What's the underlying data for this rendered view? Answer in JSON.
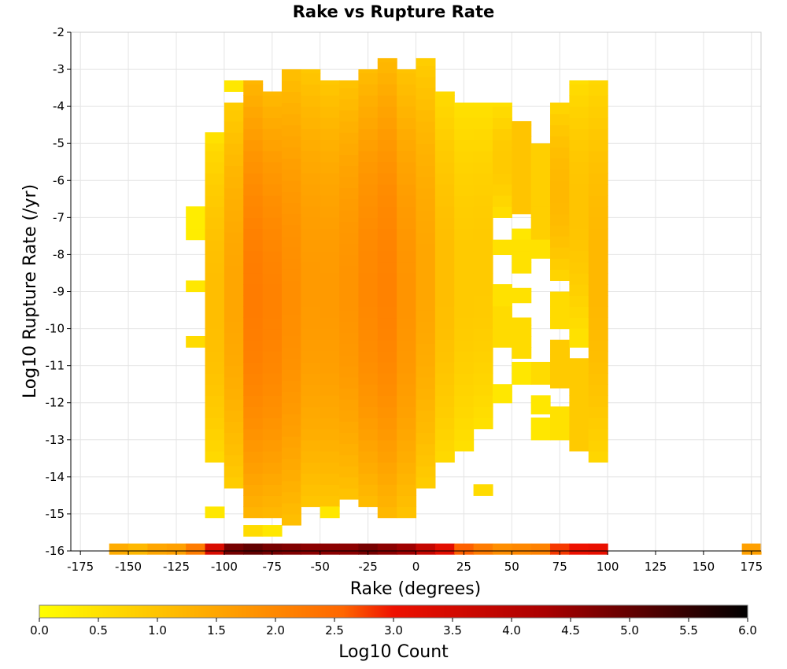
{
  "chart_data": {
    "type": "heatmap",
    "title": "Rake vs Rupture Rate",
    "xlabel": "Rake (degrees)",
    "ylabel": "Log10 Rupture Rate (/yr)",
    "xlim": [
      -180,
      180
    ],
    "ylim": [
      -16,
      -2
    ],
    "x_ticks": [
      -175,
      -150,
      -125,
      -100,
      -75,
      -50,
      -25,
      0,
      25,
      50,
      75,
      100,
      125,
      150,
      175
    ],
    "y_ticks": [
      -2,
      -3,
      -4,
      -5,
      -6,
      -7,
      -8,
      -9,
      -10,
      -11,
      -12,
      -13,
      -14,
      -15,
      -16
    ],
    "grid": true,
    "bin_width_x": 10,
    "bin_height_y": 0.3,
    "colorscale": {
      "label": "Log10 Count",
      "min": 0.0,
      "max": 6.0,
      "ticks": [
        "0.0",
        "0.5",
        "1.0",
        "1.5",
        "2.0",
        "2.5",
        "3.0",
        "3.5",
        "4.0",
        "4.5",
        "5.0",
        "5.5",
        "6.0"
      ],
      "stops": [
        "#ffff00",
        "#ffcc00",
        "#ff9900",
        "#ff6600",
        "#ee1100",
        "#aa0000",
        "#550000",
        "#000000"
      ]
    },
    "bottom_row": {
      "y_center": -15.95,
      "x_centers": [
        -155,
        -145,
        -135,
        -125,
        -115,
        -105,
        -95,
        -85,
        -75,
        -65,
        -55,
        -45,
        -35,
        -25,
        -15,
        -5,
        5,
        15,
        25,
        35,
        45,
        55,
        65,
        75,
        85,
        95,
        175
      ],
      "values": [
        1.4,
        1.2,
        1.5,
        1.6,
        2.2,
        3.4,
        4.8,
        5.0,
        4.8,
        4.7,
        4.6,
        4.6,
        4.6,
        4.8,
        4.6,
        4.4,
        3.8,
        3.2,
        2.6,
        2.2,
        1.9,
        2.0,
        2.1,
        2.8,
        3.0,
        3.1,
        1.6
      ]
    },
    "columns": [
      {
        "x_center": -115,
        "segments": [
          [
            -7.6,
            -6.7,
            0.3
          ],
          [
            -9.0,
            -8.7,
            0.4
          ],
          [
            -10.5,
            -10.2,
            0.6
          ]
        ]
      },
      {
        "x_center": -105,
        "segments": [
          [
            -5.3,
            -4.7,
            0.5
          ],
          [
            -13.6,
            -5.0,
            1.1
          ],
          [
            -15.1,
            -14.8,
            0.4
          ]
        ]
      },
      {
        "x_center": -95,
        "segments": [
          [
            -3.6,
            -3.3,
            0.4
          ],
          [
            -14.3,
            -3.9,
            1.5
          ]
        ]
      },
      {
        "x_center": -85,
        "segments": [
          [
            -15.1,
            -3.3,
            2.2
          ],
          [
            -15.6,
            -15.3,
            0.6
          ]
        ]
      },
      {
        "x_center": -75,
        "segments": [
          [
            -15.1,
            -3.6,
            2.1
          ],
          [
            -15.6,
            -15.3,
            0.4
          ]
        ]
      },
      {
        "x_center": -65,
        "segments": [
          [
            -15.3,
            -3.0,
            1.9
          ]
        ]
      },
      {
        "x_center": -55,
        "segments": [
          [
            -14.8,
            -3.0,
            1.7
          ]
        ]
      },
      {
        "x_center": -45,
        "segments": [
          [
            -14.8,
            -3.3,
            1.7
          ],
          [
            -15.1,
            -14.8,
            0.4
          ]
        ]
      },
      {
        "x_center": -35,
        "segments": [
          [
            -14.6,
            -3.3,
            1.8
          ]
        ]
      },
      {
        "x_center": -25,
        "segments": [
          [
            -14.8,
            -3.0,
            2.0
          ]
        ]
      },
      {
        "x_center": -15,
        "segments": [
          [
            -15.1,
            -2.7,
            2.1
          ]
        ]
      },
      {
        "x_center": -5,
        "segments": [
          [
            -15.1,
            -3.0,
            1.8
          ]
        ]
      },
      {
        "x_center": 5,
        "segments": [
          [
            -14.3,
            -2.7,
            1.5
          ]
        ]
      },
      {
        "x_center": 15,
        "segments": [
          [
            -13.6,
            -3.6,
            1.1
          ]
        ]
      },
      {
        "x_center": 25,
        "segments": [
          [
            -13.3,
            -3.9,
            0.9
          ]
        ]
      },
      {
        "x_center": 35,
        "segments": [
          [
            -12.7,
            -3.9,
            0.9
          ],
          [
            -14.5,
            -14.2,
            0.6
          ]
        ]
      },
      {
        "x_center": 45,
        "segments": [
          [
            -7.0,
            -3.9,
            0.9
          ],
          [
            -8.0,
            -7.6,
            0.5
          ],
          [
            -9.4,
            -8.8,
            0.5
          ],
          [
            -10.5,
            -9.4,
            0.6
          ],
          [
            -12.0,
            -11.5,
            0.4
          ]
        ]
      },
      {
        "x_center": 55,
        "segments": [
          [
            -6.9,
            -4.4,
            1.0
          ],
          [
            -7.6,
            -7.3,
            0.4
          ],
          [
            -8.5,
            -7.6,
            0.5
          ],
          [
            -9.3,
            -8.9,
            0.5
          ],
          [
            -10.8,
            -9.7,
            0.6
          ],
          [
            -11.5,
            -10.9,
            0.4
          ]
        ]
      },
      {
        "x_center": 65,
        "segments": [
          [
            -7.6,
            -5.0,
            0.8
          ],
          [
            -8.1,
            -7.6,
            0.5
          ],
          [
            -11.5,
            -10.9,
            0.6
          ],
          [
            -12.3,
            -11.8,
            0.4
          ],
          [
            -13.0,
            -12.4,
            0.4
          ]
        ]
      },
      {
        "x_center": 75,
        "segments": [
          [
            -8.7,
            -3.9,
            1.2
          ],
          [
            -10.0,
            -9.0,
            0.6
          ],
          [
            -11.6,
            -10.3,
            0.9
          ],
          [
            -13.0,
            -12.1,
            0.5
          ]
        ]
      },
      {
        "x_center": 85,
        "segments": [
          [
            -10.0,
            -3.3,
            1.0
          ],
          [
            -10.5,
            -10.0,
            0.5
          ],
          [
            -13.3,
            -10.8,
            0.9
          ]
        ]
      },
      {
        "x_center": 95,
        "segments": [
          [
            -13.6,
            -3.3,
            1.2
          ]
        ]
      }
    ]
  }
}
